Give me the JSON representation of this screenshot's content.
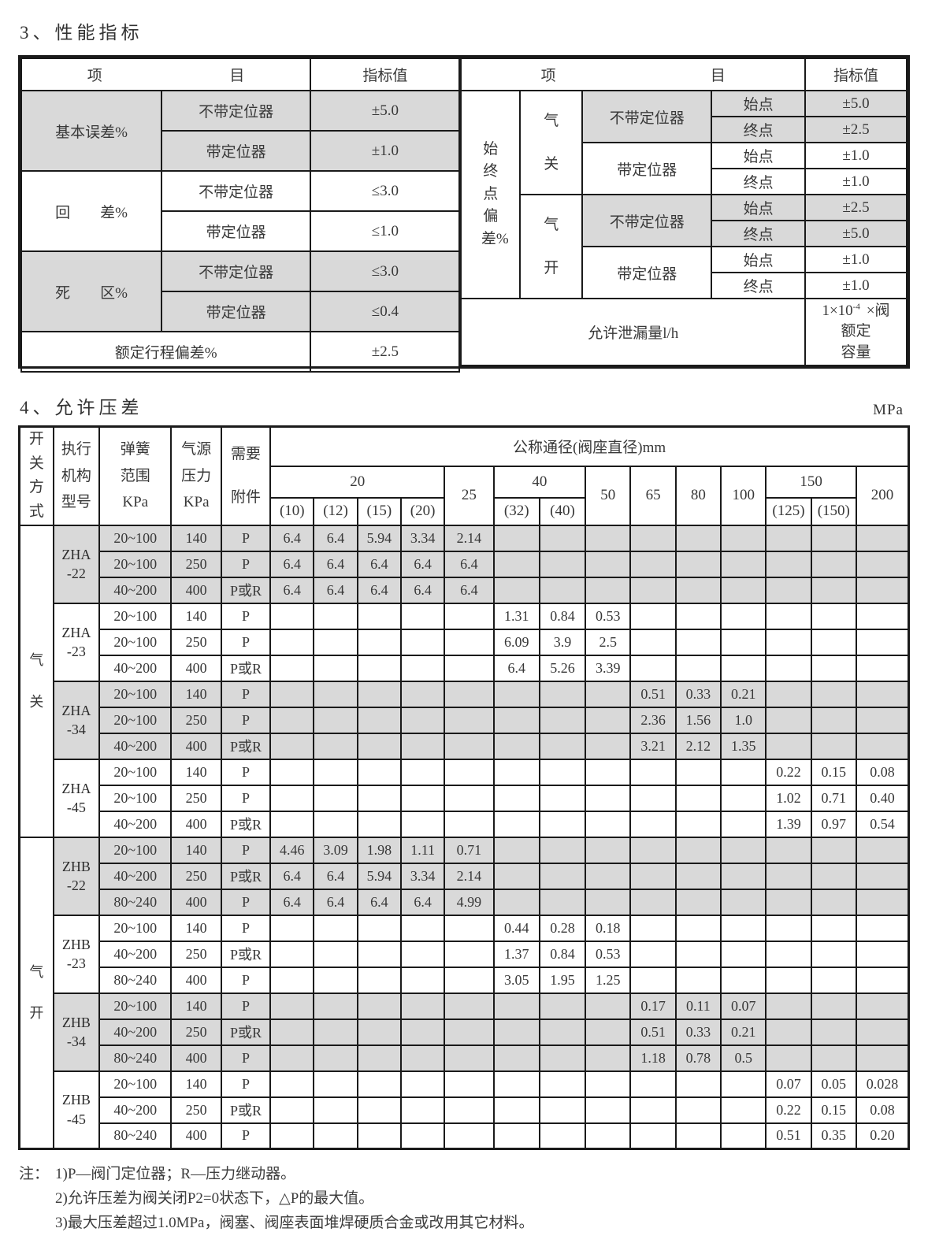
{
  "section3": {
    "title": "3、性能指标",
    "header": {
      "item_left": "项",
      "item_right": "目",
      "value": "指标值"
    },
    "left": {
      "groups": [
        {
          "label": "基本误差%",
          "shaded": true,
          "rows": [
            {
              "sub": "不带定位器",
              "value": "±5.0"
            },
            {
              "sub": "带定位器",
              "value": "±1.0"
            }
          ]
        },
        {
          "label": "回　　差%",
          "shaded": false,
          "rows": [
            {
              "sub": "不带定位器",
              "value": "≤3.0"
            },
            {
              "sub": "带定位器",
              "value": "≤1.0"
            }
          ]
        },
        {
          "label": "死　　区%",
          "shaded": true,
          "rows": [
            {
              "sub": "不带定位器",
              "value": "≤3.0"
            },
            {
              "sub": "带定位器",
              "value": "≤0.4"
            }
          ]
        }
      ],
      "footer": {
        "label": "额定行程偏差%",
        "value": "±2.5"
      }
    },
    "right": {
      "row_label": "始终点偏差%",
      "groups": [
        {
          "mode": "气关",
          "subgroups": [
            {
              "label": "不带定位器",
              "shaded": true,
              "rows": [
                {
                  "point": "始点",
                  "value": "±5.0"
                },
                {
                  "point": "终点",
                  "value": "±2.5"
                }
              ]
            },
            {
              "label": "带定位器",
              "shaded": false,
              "rows": [
                {
                  "point": "始点",
                  "value": "±1.0"
                },
                {
                  "point": "终点",
                  "value": "±1.0"
                }
              ]
            }
          ]
        },
        {
          "mode": "气开",
          "subgroups": [
            {
              "label": "不带定位器",
              "shaded": true,
              "rows": [
                {
                  "point": "始点",
                  "value": "±2.5"
                },
                {
                  "point": "终点",
                  "value": "±5.0"
                }
              ]
            },
            {
              "label": "带定位器",
              "shaded": false,
              "rows": [
                {
                  "point": "始点",
                  "value": "±1.0"
                },
                {
                  "point": "终点",
                  "value": "±1.0"
                }
              ]
            }
          ]
        }
      ],
      "leakage": {
        "label": "允许泄漏量l/h",
        "v1": "1×10",
        "v1sup": "-4",
        "v1b": "×阀",
        "v2": "额定",
        "v3": "容量"
      }
    }
  },
  "section4": {
    "title": "4、允许压差",
    "unit": "MPa",
    "header": {
      "switch_mode": "开关方式",
      "actuator": "执行\n机构\n型号",
      "spring": "弹簧\n范围\nKPa",
      "supply": "气源\n压力\nKPa",
      "accessory": "需要\n附件",
      "diameter_title": "公称通径(阀座直径)mm",
      "col_groups": [
        {
          "label": "20",
          "subs": [
            "(10)",
            "(12)",
            "(15)",
            "(20)"
          ]
        },
        {
          "label": "25",
          "subs": []
        },
        {
          "label": "40",
          "subs": [
            "(32)",
            "(40)"
          ]
        },
        {
          "label": "50",
          "subs": []
        },
        {
          "label": "65",
          "subs": []
        },
        {
          "label": "80",
          "subs": []
        },
        {
          "label": "100",
          "subs": []
        },
        {
          "label": "150",
          "subs": [
            "(125)",
            "(150)"
          ]
        },
        {
          "label": "200",
          "subs": []
        }
      ]
    },
    "modes": [
      {
        "label": "气关",
        "models": [
          {
            "name": "ZHA\n-22",
            "shaded": true,
            "rows": [
              {
                "spring": "20~100",
                "pressure": "140",
                "accessory": "P",
                "values": [
                  "6.4",
                  "6.4",
                  "5.94",
                  "3.34",
                  "2.14",
                  "",
                  "",
                  "",
                  "",
                  "",
                  "",
                  "",
                  "",
                  ""
                ]
              },
              {
                "spring": "20~100",
                "pressure": "250",
                "accessory": "P",
                "values": [
                  "6.4",
                  "6.4",
                  "6.4",
                  "6.4",
                  "6.4",
                  "",
                  "",
                  "",
                  "",
                  "",
                  "",
                  "",
                  "",
                  ""
                ]
              },
              {
                "spring": "40~200",
                "pressure": "400",
                "accessory": "P或R",
                "values": [
                  "6.4",
                  "6.4",
                  "6.4",
                  "6.4",
                  "6.4",
                  "",
                  "",
                  "",
                  "",
                  "",
                  "",
                  "",
                  "",
                  ""
                ]
              }
            ]
          },
          {
            "name": "ZHA\n-23",
            "shaded": false,
            "rows": [
              {
                "spring": "20~100",
                "pressure": "140",
                "accessory": "P",
                "values": [
                  "",
                  "",
                  "",
                  "",
                  "",
                  "1.31",
                  "0.84",
                  "0.53",
                  "",
                  "",
                  "",
                  "",
                  "",
                  ""
                ]
              },
              {
                "spring": "20~100",
                "pressure": "250",
                "accessory": "P",
                "values": [
                  "",
                  "",
                  "",
                  "",
                  "",
                  "6.09",
                  "3.9",
                  "2.5",
                  "",
                  "",
                  "",
                  "",
                  "",
                  ""
                ]
              },
              {
                "spring": "40~200",
                "pressure": "400",
                "accessory": "P或R",
                "values": [
                  "",
                  "",
                  "",
                  "",
                  "",
                  "6.4",
                  "5.26",
                  "3.39",
                  "",
                  "",
                  "",
                  "",
                  "",
                  ""
                ]
              }
            ]
          },
          {
            "name": "ZHA\n-34",
            "shaded": true,
            "rows": [
              {
                "spring": "20~100",
                "pressure": "140",
                "accessory": "P",
                "values": [
                  "",
                  "",
                  "",
                  "",
                  "",
                  "",
                  "",
                  "",
                  "0.51",
                  "0.33",
                  "0.21",
                  "",
                  "",
                  ""
                ]
              },
              {
                "spring": "20~100",
                "pressure": "250",
                "accessory": "P",
                "values": [
                  "",
                  "",
                  "",
                  "",
                  "",
                  "",
                  "",
                  "",
                  "2.36",
                  "1.56",
                  "1.0",
                  "",
                  "",
                  ""
                ]
              },
              {
                "spring": "40~200",
                "pressure": "400",
                "accessory": "P或R",
                "values": [
                  "",
                  "",
                  "",
                  "",
                  "",
                  "",
                  "",
                  "",
                  "3.21",
                  "2.12",
                  "1.35",
                  "",
                  "",
                  ""
                ]
              }
            ]
          },
          {
            "name": "ZHA\n-45",
            "shaded": false,
            "rows": [
              {
                "spring": "20~100",
                "pressure": "140",
                "accessory": "P",
                "values": [
                  "",
                  "",
                  "",
                  "",
                  "",
                  "",
                  "",
                  "",
                  "",
                  "",
                  "",
                  "0.22",
                  "0.15",
                  "0.08"
                ]
              },
              {
                "spring": "20~100",
                "pressure": "250",
                "accessory": "P",
                "values": [
                  "",
                  "",
                  "",
                  "",
                  "",
                  "",
                  "",
                  "",
                  "",
                  "",
                  "",
                  "1.02",
                  "0.71",
                  "0.40"
                ]
              },
              {
                "spring": "40~200",
                "pressure": "400",
                "accessory": "P或R",
                "values": [
                  "",
                  "",
                  "",
                  "",
                  "",
                  "",
                  "",
                  "",
                  "",
                  "",
                  "",
                  "1.39",
                  "0.97",
                  "0.54"
                ]
              }
            ]
          }
        ]
      },
      {
        "label": "气开",
        "models": [
          {
            "name": "ZHB\n-22",
            "shaded": true,
            "rows": [
              {
                "spring": "20~100",
                "pressure": "140",
                "accessory": "P",
                "values": [
                  "4.46",
                  "3.09",
                  "1.98",
                  "1.11",
                  "0.71",
                  "",
                  "",
                  "",
                  "",
                  "",
                  "",
                  "",
                  "",
                  ""
                ]
              },
              {
                "spring": "40~200",
                "pressure": "250",
                "accessory": "P或R",
                "values": [
                  "6.4",
                  "6.4",
                  "5.94",
                  "3.34",
                  "2.14",
                  "",
                  "",
                  "",
                  "",
                  "",
                  "",
                  "",
                  "",
                  ""
                ]
              },
              {
                "spring": "80~240",
                "pressure": "400",
                "accessory": "P",
                "values": [
                  "6.4",
                  "6.4",
                  "6.4",
                  "6.4",
                  "4.99",
                  "",
                  "",
                  "",
                  "",
                  "",
                  "",
                  "",
                  "",
                  ""
                ]
              }
            ]
          },
          {
            "name": "ZHB\n-23",
            "shaded": false,
            "rows": [
              {
                "spring": "20~100",
                "pressure": "140",
                "accessory": "P",
                "values": [
                  "",
                  "",
                  "",
                  "",
                  "",
                  "0.44",
                  "0.28",
                  "0.18",
                  "",
                  "",
                  "",
                  "",
                  "",
                  ""
                ]
              },
              {
                "spring": "40~200",
                "pressure": "250",
                "accessory": "P或R",
                "values": [
                  "",
                  "",
                  "",
                  "",
                  "",
                  "1.37",
                  "0.84",
                  "0.53",
                  "",
                  "",
                  "",
                  "",
                  "",
                  ""
                ]
              },
              {
                "spring": "80~240",
                "pressure": "400",
                "accessory": "P",
                "values": [
                  "",
                  "",
                  "",
                  "",
                  "",
                  "3.05",
                  "1.95",
                  "1.25",
                  "",
                  "",
                  "",
                  "",
                  "",
                  ""
                ]
              }
            ]
          },
          {
            "name": "ZHB\n-34",
            "shaded": true,
            "rows": [
              {
                "spring": "20~100",
                "pressure": "140",
                "accessory": "P",
                "values": [
                  "",
                  "",
                  "",
                  "",
                  "",
                  "",
                  "",
                  "",
                  "0.17",
                  "0.11",
                  "0.07",
                  "",
                  "",
                  ""
                ]
              },
              {
                "spring": "40~200",
                "pressure": "250",
                "accessory": "P或R",
                "values": [
                  "",
                  "",
                  "",
                  "",
                  "",
                  "",
                  "",
                  "",
                  "0.51",
                  "0.33",
                  "0.21",
                  "",
                  "",
                  ""
                ]
              },
              {
                "spring": "80~240",
                "pressure": "400",
                "accessory": "P",
                "values": [
                  "",
                  "",
                  "",
                  "",
                  "",
                  "",
                  "",
                  "",
                  "1.18",
                  "0.78",
                  "0.5",
                  "",
                  "",
                  ""
                ]
              }
            ]
          },
          {
            "name": "ZHB\n-45",
            "shaded": false,
            "rows": [
              {
                "spring": "20~100",
                "pressure": "140",
                "accessory": "P",
                "values": [
                  "",
                  "",
                  "",
                  "",
                  "",
                  "",
                  "",
                  "",
                  "",
                  "",
                  "",
                  "0.07",
                  "0.05",
                  "0.028"
                ]
              },
              {
                "spring": "40~200",
                "pressure": "250",
                "accessory": "P或R",
                "values": [
                  "",
                  "",
                  "",
                  "",
                  "",
                  "",
                  "",
                  "",
                  "",
                  "",
                  "",
                  "0.22",
                  "0.15",
                  "0.08"
                ]
              },
              {
                "spring": "80~240",
                "pressure": "400",
                "accessory": "P",
                "values": [
                  "",
                  "",
                  "",
                  "",
                  "",
                  "",
                  "",
                  "",
                  "",
                  "",
                  "",
                  "0.51",
                  "0.35",
                  "0.20"
                ]
              }
            ]
          }
        ]
      }
    ]
  },
  "notes": {
    "prefix": "注：",
    "items": [
      "1)P—阀门定位器；R—压力继动器。",
      "2)允许压差为阀关闭P2=0状态下，△P的最大值。",
      "3)最大压差超过1.0MPa，阀塞、阀座表面堆焊硬质合金或改用其它材料。"
    ]
  }
}
